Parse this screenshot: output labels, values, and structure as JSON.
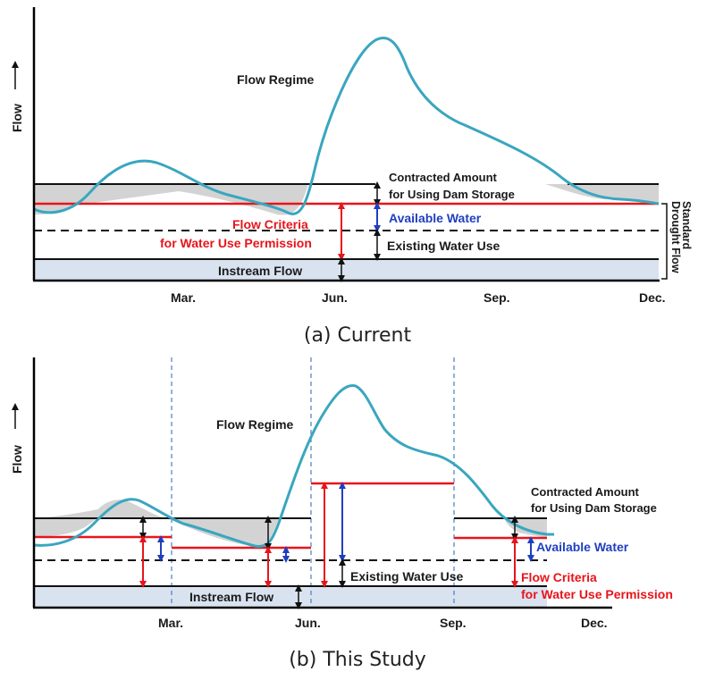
{
  "colors": {
    "flow_curve": "#3aa6bf",
    "criteria": "#e8141b",
    "available": "#1f3fbf",
    "storage_fill": "#d3d3d3",
    "instream_fill": "#d9e3f0",
    "axis": "#000000",
    "divider": "#4a7fc0"
  },
  "panel_a": {
    "y_axis_label": "Flow",
    "months": [
      "Mar.",
      "Jun.",
      "Sep.",
      "Dec."
    ],
    "flow_regime": "Flow Regime",
    "contracted_line1": "Contracted Amount",
    "contracted_line2": "for Using Dam Storage",
    "available_water": "Available  Water",
    "criteria_line1": "Flow Criteria",
    "criteria_line2": "for Water Use Permission",
    "existing_water_use": "Existing  Water Use",
    "instream_flow": "Instream  Flow",
    "side_line1": "Standard",
    "side_line2": "Drought Flow",
    "caption": "(a) Current"
  },
  "panel_b": {
    "y_axis_label": "Flow",
    "months": [
      "Mar.",
      "Jun.",
      "Sep.",
      "Dec."
    ],
    "flow_regime": "Flow Regime",
    "contracted_line1": "Contracted Amount",
    "contracted_line2": "for Using Dam Storage",
    "available_water": "Available  Water",
    "criteria_line1": "Flow Criteria",
    "criteria_line2": "for Water Use Permission",
    "existing_water_use": "Existing  Water Use",
    "instream_flow": "Instream  Flow",
    "caption": "(b) This Study"
  }
}
